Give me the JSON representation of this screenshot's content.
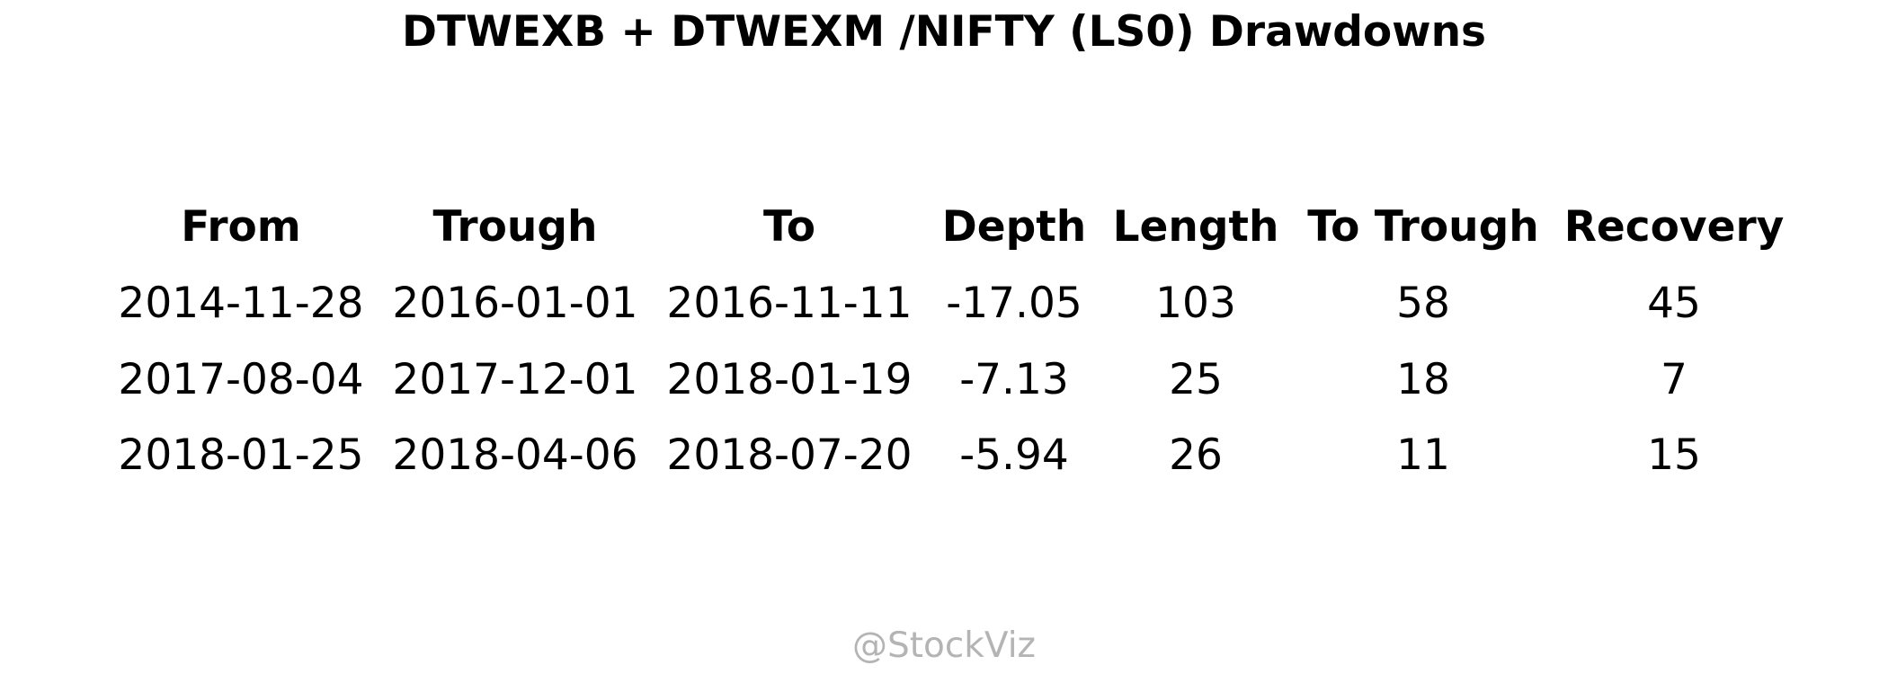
{
  "chart_data": {
    "type": "table",
    "title": "DTWEXB + DTWEXM /NIFTY (LS0) Drawdowns",
    "columns": [
      "From",
      "Trough",
      "To",
      "Depth",
      "Length",
      "To Trough",
      "Recovery"
    ],
    "rows": [
      [
        "2014-11-28",
        "2016-01-01",
        "2016-11-11",
        "-17.05",
        "103",
        "58",
        "45"
      ],
      [
        "2017-08-04",
        "2017-12-01",
        "2018-01-19",
        "-7.13",
        "25",
        "18",
        "7"
      ],
      [
        "2018-01-25",
        "2018-04-06",
        "2018-07-20",
        "-5.94",
        "26",
        "11",
        "15"
      ]
    ]
  },
  "watermark": "@StockViz"
}
